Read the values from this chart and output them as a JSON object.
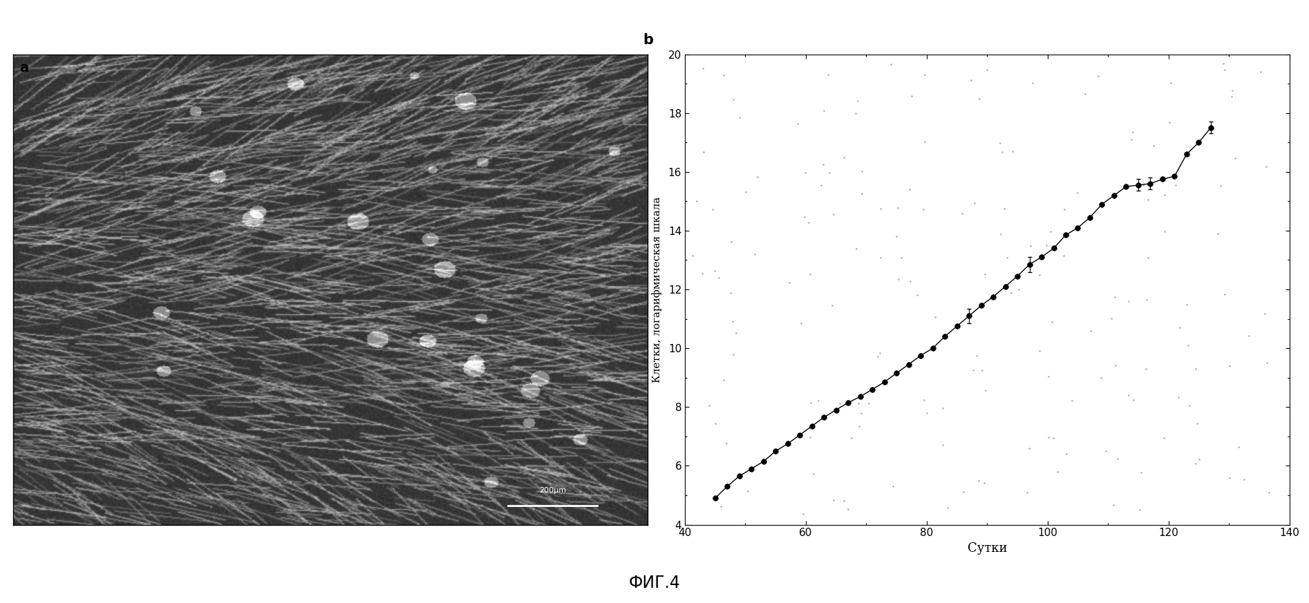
{
  "x_data": [
    45,
    47,
    49,
    51,
    53,
    55,
    57,
    59,
    61,
    63,
    65,
    67,
    69,
    71,
    73,
    75,
    77,
    79,
    81,
    83,
    85,
    87,
    89,
    91,
    93,
    95,
    97,
    99,
    101,
    103,
    105,
    107,
    109,
    111,
    113,
    115,
    117,
    119,
    121,
    123,
    125,
    127
  ],
  "y_data": [
    4.9,
    5.3,
    5.65,
    5.9,
    6.15,
    6.5,
    6.75,
    7.05,
    7.35,
    7.65,
    7.9,
    8.15,
    8.35,
    8.6,
    8.85,
    9.15,
    9.45,
    9.75,
    10.0,
    10.4,
    10.75,
    11.1,
    11.45,
    11.75,
    12.1,
    12.45,
    12.85,
    13.1,
    13.4,
    13.85,
    14.1,
    14.45,
    14.9,
    15.2,
    15.5,
    15.55,
    15.6,
    15.75,
    15.85,
    16.6,
    17.0,
    17.5
  ],
  "yerr": [
    0.0,
    0.0,
    0.0,
    0.0,
    0.0,
    0.0,
    0.0,
    0.0,
    0.0,
    0.0,
    0.0,
    0.0,
    0.0,
    0.0,
    0.0,
    0.0,
    0.0,
    0.0,
    0.0,
    0.0,
    0.0,
    0.25,
    0.0,
    0.0,
    0.0,
    0.0,
    0.25,
    0.0,
    0.0,
    0.0,
    0.0,
    0.0,
    0.0,
    0.0,
    0.0,
    0.2,
    0.2,
    0.0,
    0.0,
    0.0,
    0.0,
    0.2
  ],
  "xlabel": "Сутки",
  "ylabel": "Клетки, логарифмическая шкала",
  "xlim": [
    40,
    140
  ],
  "ylim": [
    4,
    20
  ],
  "xticks": [
    40,
    60,
    80,
    100,
    120,
    140
  ],
  "yticks": [
    4,
    6,
    8,
    10,
    12,
    14,
    16,
    18,
    20
  ],
  "label_b": "b",
  "label_fig": "ФИГ.4",
  "bg_color": "#ffffff",
  "line_color": "#000000",
  "marker_color": "#000000",
  "left_panel_label": "a",
  "scalebar_text": "200µm"
}
